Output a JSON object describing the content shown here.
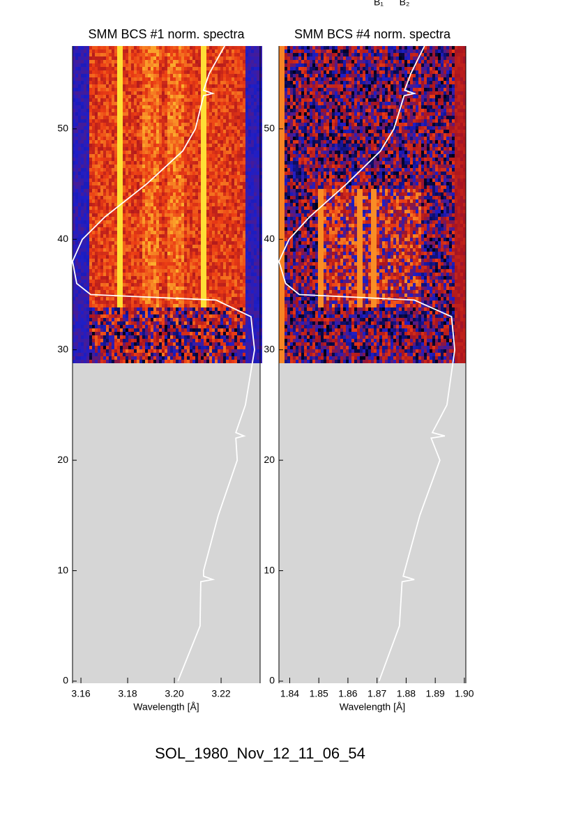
{
  "annotations": [
    "B₁",
    "B₂"
  ],
  "chart_data": [
    {
      "type": "heatmap",
      "title": "SMM BCS #1 norm. spectra",
      "xlabel": "Wavelength [Å]",
      "xlim": [
        3.1564,
        3.2367
      ],
      "ylim": [
        0,
        57.5
      ],
      "xticks": [
        3.16,
        3.18,
        {
          "value": 3.2,
          "label": "3.20"
        },
        3.22
      ],
      "yticks": [
        0,
        10,
        20,
        30,
        40,
        50
      ],
      "curve": {
        "color": "#ffffff",
        "y": [
          0,
          5,
          9,
          9.2,
          9.5,
          10,
          15,
          20,
          22,
          22.2,
          22.5,
          25,
          30,
          33,
          34.5,
          35,
          36,
          38,
          40,
          42,
          45,
          48,
          50,
          53,
          53.2,
          53.5,
          55,
          57.5
        ],
        "x": [
          3.2015,
          3.211,
          3.2113,
          3.2164,
          3.2125,
          3.2125,
          3.2188,
          3.2269,
          3.2263,
          3.2298,
          3.2263,
          3.2304,
          3.2343,
          3.2328,
          3.2179,
          3.1642,
          3.1582,
          3.1564,
          3.1606,
          3.1701,
          3.1881,
          3.2036,
          3.209,
          3.2125,
          3.2164,
          3.2125,
          3.2149,
          3.2215
        ]
      }
    },
    {
      "type": "heatmap",
      "title": "SMM BCS #4 norm. spectra",
      "xlabel": "Wavelength [Å]",
      "xlim": [
        1.8363,
        1.9005
      ],
      "ylim": [
        0,
        57.5
      ],
      "xticks": [
        1.84,
        1.85,
        1.86,
        1.87,
        1.88,
        1.89,
        {
          "value": 1.9,
          "label": "1.90"
        }
      ],
      "yticks": [
        0,
        10,
        20,
        30,
        40,
        50
      ],
      "curve": {
        "color": "#ffffff",
        "y": [
          0,
          5,
          9,
          9.2,
          9.5,
          10,
          15,
          20,
          22,
          22.2,
          22.5,
          25,
          30,
          33,
          34.5,
          35,
          36,
          38,
          40,
          42,
          45,
          48,
          50,
          53,
          53.2,
          53.5,
          55,
          57.5
        ],
        "x": [
          1.8707,
          1.8777,
          1.8786,
          1.8828,
          1.879,
          1.8795,
          1.8847,
          1.8916,
          1.8886,
          1.8933,
          1.889,
          1.894,
          1.8967,
          1.8956,
          1.8828,
          1.8433,
          1.8386,
          1.8363,
          1.8398,
          1.8467,
          1.8595,
          1.8712,
          1.8758,
          1.8793,
          1.8828,
          1.8795,
          1.8816,
          1.8863
        ]
      }
    }
  ],
  "caption": "SOL_1980_Nov_12_11_06_54"
}
